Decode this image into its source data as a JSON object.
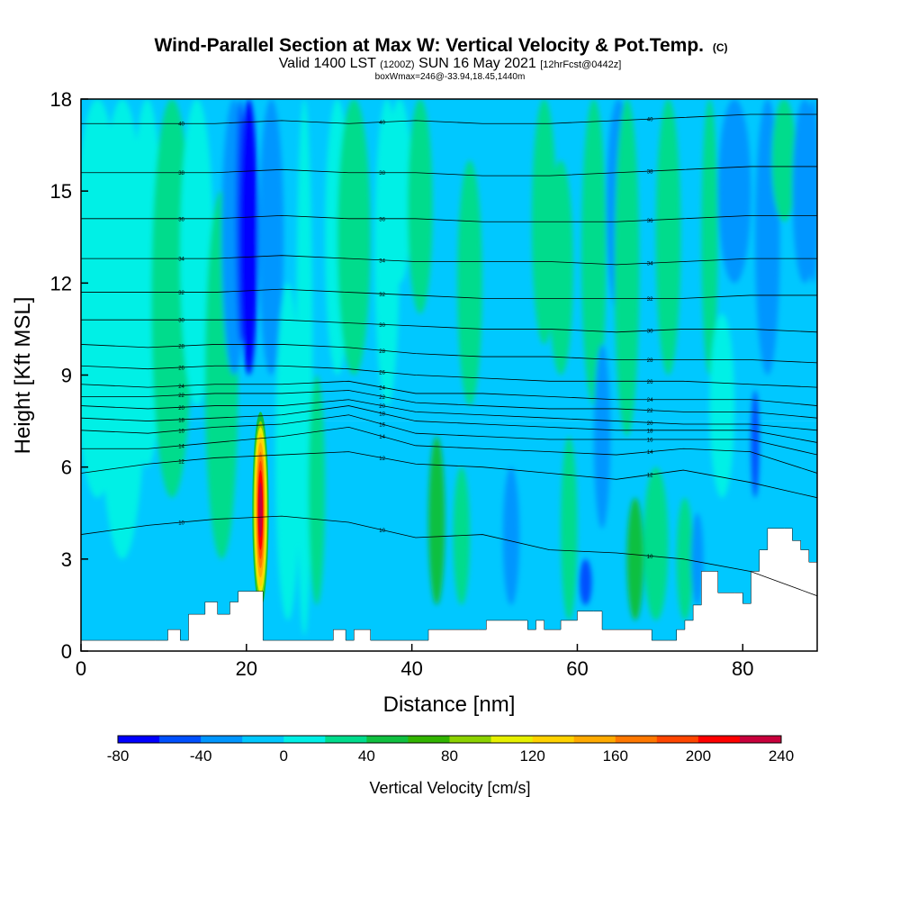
{
  "chart_data": {
    "type": "heatmap",
    "title": "Wind-Parallel Section at Max W: Vertical Velocity & Pot.Temp.",
    "title_mark": "(C)",
    "subtitle_parts": [
      "Valid 1400 LST",
      "(1200Z)",
      "SUN 16 May 2021",
      "[12hrFcst@0442z]"
    ],
    "box_info": "boxWmax=246@-33.94,18.45,1440m",
    "xlabel": "Distance [nm]",
    "ylabel": "Height [Kft MSL]",
    "xlim": [
      0,
      89
    ],
    "ylim": [
      0,
      18
    ],
    "x_ticks": [
      0,
      20,
      40,
      60,
      80
    ],
    "y_ticks": [
      0,
      3,
      6,
      9,
      12,
      15,
      18
    ],
    "colorbar": {
      "label": "Vertical Velocity [cm/s]",
      "tick_labels": [
        "-80",
        "-40",
        "0",
        "40",
        "80",
        "120",
        "160",
        "200",
        "240"
      ],
      "bin_edges": [
        -80,
        -60,
        -40,
        -20,
        0,
        20,
        40,
        60,
        80,
        100,
        120,
        140,
        160,
        180,
        200,
        220,
        240
      ],
      "colors": [
        "#0000ff",
        "#0050ff",
        "#0096ff",
        "#00c8ff",
        "#00f0e6",
        "#00dc8c",
        "#10c040",
        "#32b400",
        "#8cd200",
        "#e6f000",
        "#ffd200",
        "#ffaa00",
        "#ff7800",
        "#ff4600",
        "#ff0000",
        "#c8003c"
      ]
    },
    "max_updraft": {
      "distance_nm": 21.7,
      "base_kft": 2,
      "top_kft": 8,
      "peak_cm_s": 246
    },
    "terrain_kft": [
      [
        0,
        0.35
      ],
      [
        9,
        0.35
      ],
      [
        10.5,
        0.7
      ],
      [
        12,
        0.35
      ],
      [
        13,
        1.2
      ],
      [
        15,
        1.6
      ],
      [
        16.5,
        1.2
      ],
      [
        18,
        1.6
      ],
      [
        19,
        1.95
      ],
      [
        21,
        1.95
      ],
      [
        22,
        0.35
      ],
      [
        29,
        0.35
      ],
      [
        30.5,
        0.7
      ],
      [
        32,
        0.35
      ],
      [
        33,
        0.7
      ],
      [
        35,
        0.35
      ],
      [
        41,
        0.35
      ],
      [
        42,
        0.7
      ],
      [
        48,
        0.7
      ],
      [
        49,
        1.0
      ],
      [
        53,
        1.0
      ],
      [
        54,
        0.7
      ],
      [
        55,
        1.0
      ],
      [
        56,
        0.7
      ],
      [
        58,
        1.0
      ],
      [
        60,
        1.3
      ],
      [
        62,
        1.3
      ],
      [
        63,
        0.7
      ],
      [
        69,
        0.35
      ],
      [
        71,
        0.35
      ],
      [
        72,
        0.7
      ],
      [
        73,
        1.0
      ],
      [
        74,
        1.5
      ],
      [
        75,
        2.6
      ],
      [
        76,
        2.6
      ],
      [
        77,
        1.9
      ],
      [
        79,
        1.9
      ],
      [
        80,
        1.55
      ],
      [
        81,
        2.6
      ],
      [
        82,
        3.3
      ],
      [
        83,
        4.0
      ],
      [
        85,
        4.0
      ],
      [
        86,
        3.6
      ],
      [
        87,
        3.3
      ],
      [
        88,
        2.9
      ],
      [
        89,
        2.9
      ]
    ],
    "theta_contours": [
      {
        "label": "10",
        "heights_kft": [
          3.8,
          4.1,
          4.3,
          4.4,
          4.2,
          3.7,
          3.8,
          3.3,
          3.2,
          3.0,
          2.6,
          1.8
        ]
      },
      {
        "label": "12",
        "heights_kft": [
          5.8,
          6.1,
          6.3,
          6.4,
          6.5,
          6.1,
          6.0,
          5.8,
          5.6,
          5.9,
          5.5,
          5.0
        ]
      },
      {
        "label": "14",
        "heights_kft": [
          6.6,
          6.6,
          6.8,
          7.0,
          7.3,
          6.7,
          6.6,
          6.5,
          6.4,
          6.6,
          6.5,
          5.8
        ]
      },
      {
        "label": "16",
        "heights_kft": [
          7.2,
          7.1,
          7.3,
          7.4,
          7.7,
          7.1,
          7.0,
          6.9,
          6.9,
          6.9,
          6.9,
          6.4
        ]
      },
      {
        "label": "18",
        "heights_kft": [
          7.6,
          7.5,
          7.6,
          7.7,
          8.0,
          7.5,
          7.4,
          7.3,
          7.2,
          7.2,
          7.2,
          6.8
        ]
      },
      {
        "label": "20",
        "heights_kft": [
          8.0,
          7.9,
          8.0,
          8.0,
          8.2,
          7.8,
          7.7,
          7.6,
          7.5,
          7.4,
          7.4,
          7.2
        ]
      },
      {
        "label": "22",
        "heights_kft": [
          8.3,
          8.3,
          8.4,
          8.4,
          8.5,
          8.1,
          8.0,
          7.9,
          7.9,
          7.8,
          7.8,
          7.6
        ]
      },
      {
        "label": "24",
        "heights_kft": [
          8.7,
          8.6,
          8.7,
          8.7,
          8.8,
          8.4,
          8.4,
          8.3,
          8.2,
          8.2,
          8.2,
          8.0
        ]
      },
      {
        "label": "26",
        "heights_kft": [
          9.3,
          9.2,
          9.3,
          9.3,
          9.2,
          9.0,
          8.9,
          8.8,
          8.8,
          8.8,
          8.7,
          8.6
        ]
      },
      {
        "label": "28",
        "heights_kft": [
          10.0,
          9.9,
          10.0,
          10.0,
          9.9,
          9.7,
          9.6,
          9.6,
          9.5,
          9.5,
          9.5,
          9.4
        ]
      },
      {
        "label": "30",
        "heights_kft": [
          10.8,
          10.8,
          10.8,
          10.8,
          10.7,
          10.6,
          10.5,
          10.5,
          10.4,
          10.5,
          10.5,
          10.4
        ]
      },
      {
        "label": "32",
        "heights_kft": [
          11.7,
          11.7,
          11.7,
          11.8,
          11.7,
          11.6,
          11.5,
          11.5,
          11.5,
          11.5,
          11.6,
          11.6
        ]
      },
      {
        "label": "34",
        "heights_kft": [
          12.8,
          12.8,
          12.8,
          12.9,
          12.8,
          12.7,
          12.7,
          12.7,
          12.6,
          12.7,
          12.8,
          12.8
        ]
      },
      {
        "label": "36",
        "heights_kft": [
          14.1,
          14.1,
          14.1,
          14.2,
          14.1,
          14.1,
          14.0,
          14.0,
          14.0,
          14.1,
          14.2,
          14.2
        ]
      },
      {
        "label": "38",
        "heights_kft": [
          15.6,
          15.6,
          15.6,
          15.7,
          15.6,
          15.6,
          15.5,
          15.5,
          15.6,
          15.7,
          15.8,
          15.8
        ]
      },
      {
        "label": "40",
        "heights_kft": [
          17.2,
          17.2,
          17.2,
          17.3,
          17.2,
          17.3,
          17.2,
          17.2,
          17.3,
          17.4,
          17.5,
          17.5
        ]
      }
    ]
  }
}
